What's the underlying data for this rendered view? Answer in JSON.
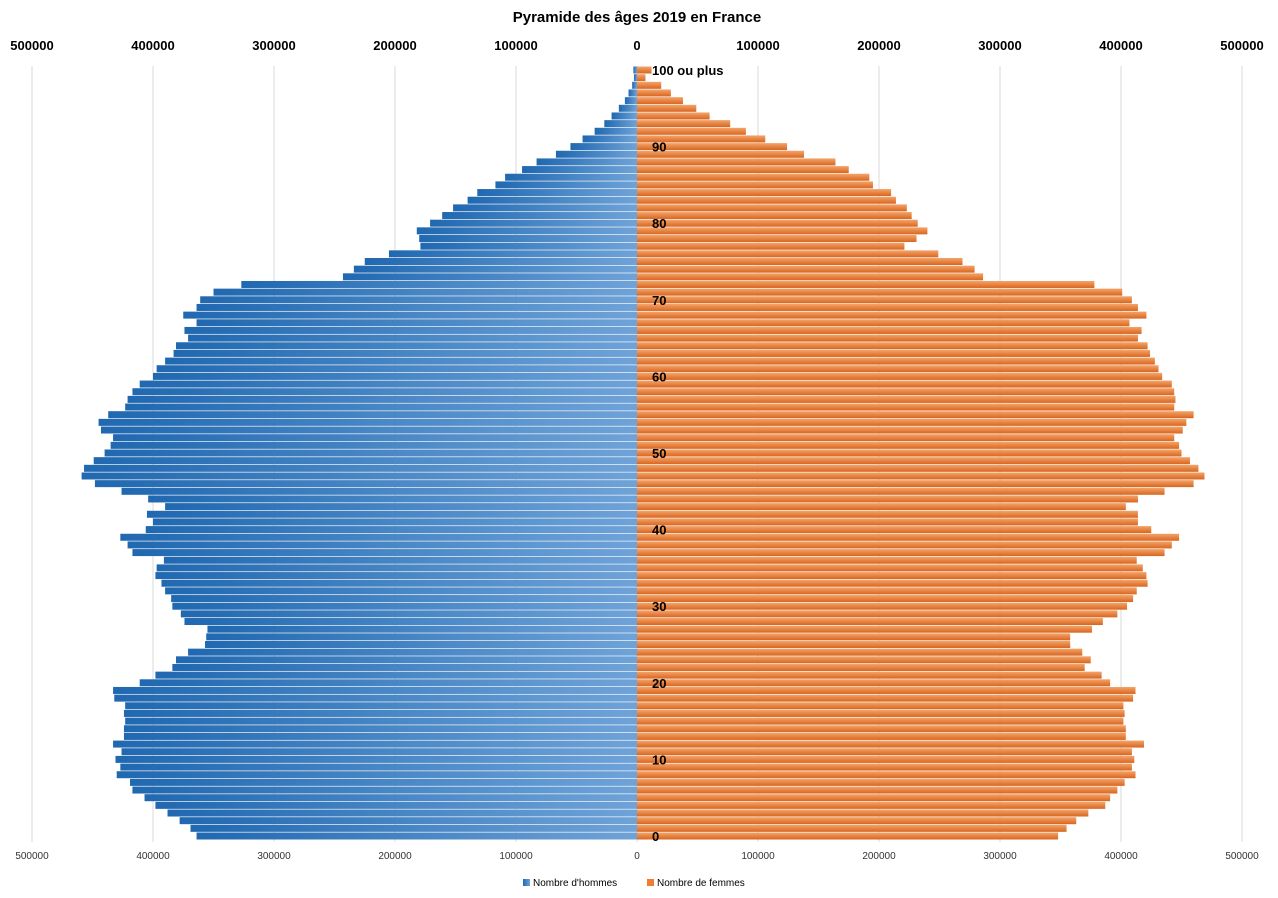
{
  "chart_data": {
    "type": "bar",
    "orientation": "horizontal-pyramid",
    "title": "Pyramide des âges 2019 en France",
    "xlim": [
      -500000,
      500000
    ],
    "x_ticks": [
      500000,
      400000,
      300000,
      200000,
      100000,
      0,
      100000,
      200000,
      300000,
      400000,
      500000
    ],
    "grid": true,
    "legend_position": "bottom",
    "age_labels": {
      "0": "0",
      "10": "10",
      "20": "20",
      "30": "30",
      "40": "40",
      "50": "50",
      "60": "60",
      "70": "70",
      "80": "80",
      "90": "90",
      "100": "100 ou plus"
    },
    "categories_note": "ages 0 to 100 ou plus",
    "series": [
      {
        "name": "Nombre d'hommes",
        "color": "#2E75B6",
        "values": [
          364000,
          369000,
          378000,
          388000,
          398000,
          407000,
          417000,
          419000,
          430000,
          427000,
          431000,
          426000,
          433000,
          424000,
          424000,
          423000,
          424000,
          423000,
          432000,
          433000,
          411000,
          398000,
          384000,
          381000,
          371000,
          357000,
          356000,
          355000,
          374000,
          377000,
          384000,
          385000,
          390000,
          393000,
          398000,
          397000,
          391000,
          417000,
          421000,
          427000,
          406000,
          400000,
          405000,
          390000,
          404000,
          426000,
          448000,
          459000,
          457000,
          449000,
          440000,
          435000,
          433000,
          443000,
          445000,
          437000,
          423000,
          421000,
          417000,
          411000,
          400000,
          397000,
          390000,
          383000,
          381000,
          371000,
          374000,
          364000,
          375000,
          364000,
          361000,
          350000,
          327000,
          243000,
          234000,
          225000,
          205000,
          179000,
          180000,
          182000,
          171000,
          161000,
          152000,
          140000,
          132000,
          117000,
          109000,
          95000,
          83000,
          67000,
          55000,
          45000,
          35000,
          27000,
          21000,
          15000,
          10000,
          7000,
          4000,
          2500,
          3000
        ]
      },
      {
        "name": "Nombre de femmes",
        "color": "#ED7D31",
        "values": [
          348000,
          355000,
          363000,
          373000,
          387000,
          391000,
          397000,
          403000,
          412000,
          409000,
          411000,
          409000,
          419000,
          404000,
          404000,
          402000,
          403000,
          402000,
          410000,
          412000,
          391000,
          384000,
          370000,
          375000,
          368000,
          358000,
          358000,
          376000,
          385000,
          397000,
          405000,
          410000,
          413000,
          422000,
          421000,
          418000,
          413000,
          436000,
          442000,
          448000,
          425000,
          414000,
          414000,
          404000,
          414000,
          436000,
          460000,
          469000,
          464000,
          457000,
          450000,
          448000,
          444000,
          451000,
          454000,
          460000,
          444000,
          445000,
          444000,
          442000,
          434000,
          431000,
          428000,
          424000,
          422000,
          414000,
          417000,
          407000,
          421000,
          414000,
          409000,
          401000,
          378000,
          286000,
          279000,
          269000,
          249000,
          221000,
          231000,
          240000,
          232000,
          227000,
          223000,
          214000,
          210000,
          195000,
          192000,
          175000,
          164000,
          138000,
          124000,
          106000,
          90000,
          77000,
          60000,
          49000,
          38000,
          28000,
          20000,
          7000,
          12000
        ]
      }
    ]
  }
}
